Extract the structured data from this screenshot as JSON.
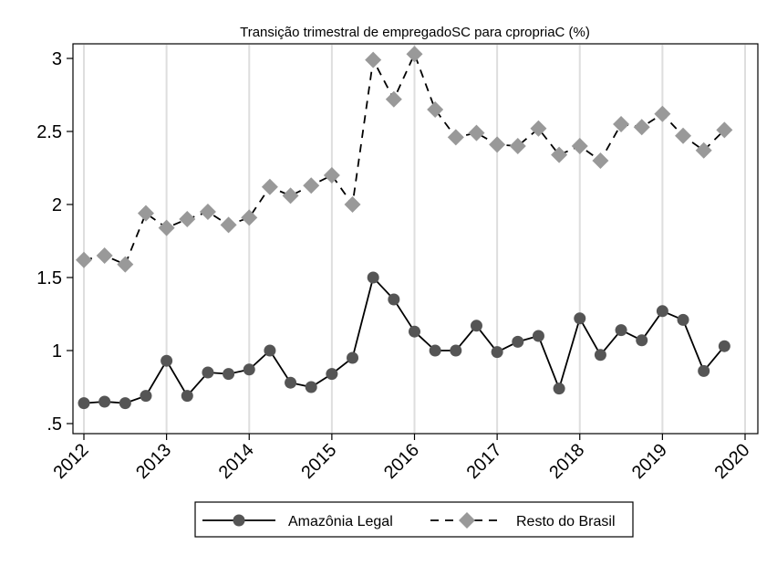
{
  "chart_data": {
    "type": "line",
    "title": "Transição trimestral de empregadoSC para cpropriaC (%)",
    "xlabel": "",
    "ylabel": "",
    "x": [
      2012.0,
      2012.25,
      2012.5,
      2012.75,
      2013.0,
      2013.25,
      2013.5,
      2013.75,
      2014.0,
      2014.25,
      2014.5,
      2014.75,
      2015.0,
      2015.25,
      2015.5,
      2015.75,
      2016.0,
      2016.25,
      2016.5,
      2016.75,
      2017.0,
      2017.25,
      2017.5,
      2017.75,
      2018.0,
      2018.25,
      2018.5,
      2018.75,
      2019.0,
      2019.25,
      2019.5,
      2019.75
    ],
    "xlim": [
      2012,
      2020
    ],
    "ylim": [
      0.5,
      3.0
    ],
    "x_ticks": [
      2012,
      2013,
      2014,
      2015,
      2016,
      2017,
      2018,
      2019,
      2020
    ],
    "x_tick_labels": [
      "2012",
      "2013",
      "2014",
      "2015",
      "2016",
      "2017",
      "2018",
      "2019",
      "2020"
    ],
    "y_ticks": [
      0.5,
      1,
      1.5,
      2,
      2.5,
      3
    ],
    "y_tick_labels": [
      ".5",
      "1",
      "1.5",
      "2",
      "2.5",
      "3"
    ],
    "grid": "vertical",
    "legend_position": "bottom",
    "series": [
      {
        "name": "Amazônia Legal",
        "color": "#555555",
        "marker": "circle",
        "line": "solid",
        "values": [
          0.64,
          0.65,
          0.64,
          0.69,
          0.93,
          0.69,
          0.85,
          0.84,
          0.87,
          1.0,
          0.78,
          0.75,
          0.84,
          0.95,
          1.5,
          1.35,
          1.13,
          1.0,
          1.0,
          1.17,
          0.99,
          1.06,
          1.1,
          0.74,
          1.22,
          0.97,
          1.14,
          1.07,
          1.27,
          1.21,
          0.86,
          1.03
        ]
      },
      {
        "name": "Resto do Brasil",
        "color": "#999999",
        "marker": "diamond",
        "line": "dashed",
        "values": [
          1.62,
          1.65,
          1.59,
          1.94,
          1.84,
          1.9,
          1.95,
          1.86,
          1.91,
          2.12,
          2.06,
          2.13,
          2.2,
          2.0,
          2.99,
          2.72,
          3.03,
          2.65,
          2.46,
          2.49,
          2.41,
          2.4,
          2.52,
          2.34,
          2.4,
          2.3,
          2.55,
          2.53,
          2.62,
          2.47,
          2.37,
          2.51
        ]
      }
    ]
  }
}
